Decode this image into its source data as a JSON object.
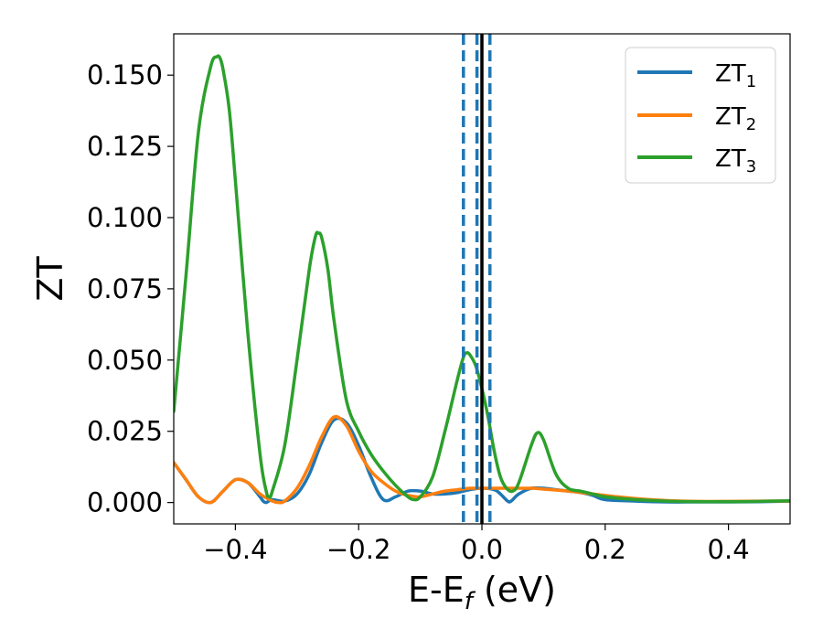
{
  "chart_data": {
    "type": "line",
    "xlabel": "E-E",
    "xlabel_sub": "f",
    "xlabel_unit": " (eV)",
    "ylabel": "ZT",
    "xlim": [
      -0.5,
      0.5
    ],
    "ylim": [
      -0.0075,
      0.1645
    ],
    "xticks": [
      -0.4,
      -0.2,
      0.0,
      0.2,
      0.4
    ],
    "xtick_labels": [
      "−0.4",
      "−0.2",
      "0.0",
      "0.2",
      "0.4"
    ],
    "yticks": [
      0.0,
      0.025,
      0.05,
      0.075,
      0.1,
      0.125,
      0.15
    ],
    "ytick_labels": [
      "0.000",
      "0.025",
      "0.050",
      "0.075",
      "0.100",
      "0.125",
      "0.150"
    ],
    "grid": false,
    "legend_position": "top-right",
    "vlines": [
      {
        "x": -0.03,
        "style": "dashed",
        "color": "#1f77b4"
      },
      {
        "x": -0.008,
        "style": "dashed",
        "color": "#1f77b4"
      },
      {
        "x": 0.013,
        "style": "dashed",
        "color": "#1f77b4"
      },
      {
        "x": 0.0,
        "style": "solid",
        "color": "#000000"
      }
    ],
    "series": [
      {
        "name": "ZT",
        "sub": "1",
        "color": "#1f77b4",
        "x": [
          -0.5,
          -0.48,
          -0.46,
          -0.44,
          -0.42,
          -0.4,
          -0.38,
          -0.36,
          -0.355,
          -0.35,
          -0.34,
          -0.32,
          -0.3,
          -0.28,
          -0.26,
          -0.24,
          -0.22,
          -0.2,
          -0.18,
          -0.16,
          -0.14,
          -0.12,
          -0.1,
          -0.08,
          -0.06,
          -0.04,
          -0.02,
          0.0,
          0.02,
          0.03,
          0.04,
          0.045,
          0.05,
          0.06,
          0.08,
          0.1,
          0.12,
          0.14,
          0.16,
          0.18,
          0.2,
          0.25,
          0.3,
          0.35,
          0.4,
          0.45,
          0.5
        ],
        "y": [
          0.014,
          0.008,
          0.002,
          0.0,
          0.004,
          0.008,
          0.007,
          0.002,
          0.0005,
          0.0,
          0.001,
          0.0005,
          0.003,
          0.01,
          0.021,
          0.029,
          0.028,
          0.02,
          0.009,
          0.001,
          0.002,
          0.004,
          0.004,
          0.003,
          0.003,
          0.0035,
          0.0045,
          0.005,
          0.0045,
          0.003,
          0.0008,
          0.0002,
          0.001,
          0.003,
          0.005,
          0.005,
          0.0045,
          0.004,
          0.0035,
          0.0025,
          0.001,
          0.0005,
          0.0002,
          0.0002,
          0.0002,
          0.0003,
          0.0005
        ]
      },
      {
        "name": "ZT",
        "sub": "2",
        "color": "#ff7f0e",
        "x": [
          -0.5,
          -0.48,
          -0.46,
          -0.44,
          -0.42,
          -0.4,
          -0.38,
          -0.36,
          -0.34,
          -0.33,
          -0.32,
          -0.3,
          -0.28,
          -0.26,
          -0.24,
          -0.22,
          -0.2,
          -0.18,
          -0.16,
          -0.14,
          -0.12,
          -0.1,
          -0.08,
          -0.06,
          -0.04,
          -0.02,
          0.0,
          0.02,
          0.05,
          0.08,
          0.1,
          0.14,
          0.18,
          0.22,
          0.26,
          0.3,
          0.35,
          0.4,
          0.45,
          0.5
        ],
        "y": [
          0.014,
          0.008,
          0.002,
          0.0,
          0.004,
          0.008,
          0.007,
          0.003,
          0.0005,
          0.0,
          0.0005,
          0.005,
          0.013,
          0.023,
          0.03,
          0.027,
          0.018,
          0.011,
          0.007,
          0.004,
          0.0025,
          0.002,
          0.003,
          0.004,
          0.0045,
          0.005,
          0.005,
          0.005,
          0.005,
          0.005,
          0.0047,
          0.004,
          0.003,
          0.002,
          0.0012,
          0.0007,
          0.0004,
          0.0004,
          0.0005,
          0.0005
        ]
      },
      {
        "name": "ZT",
        "sub": "3",
        "color": "#2ca02c",
        "x": [
          -0.5,
          -0.48,
          -0.46,
          -0.44,
          -0.43,
          -0.425,
          -0.42,
          -0.41,
          -0.4,
          -0.38,
          -0.36,
          -0.35,
          -0.345,
          -0.34,
          -0.32,
          -0.3,
          -0.28,
          -0.27,
          -0.265,
          -0.26,
          -0.25,
          -0.24,
          -0.22,
          -0.2,
          -0.18,
          -0.16,
          -0.14,
          -0.12,
          -0.11,
          -0.1,
          -0.08,
          -0.06,
          -0.04,
          -0.03,
          -0.025,
          -0.02,
          -0.01,
          0.0,
          0.01,
          0.02,
          0.03,
          0.04,
          0.05,
          0.06,
          0.08,
          0.09,
          0.1,
          0.12,
          0.14,
          0.16,
          0.18,
          0.2,
          0.25,
          0.3,
          0.35,
          0.4,
          0.45,
          0.5
        ],
        "y": [
          0.032,
          0.08,
          0.13,
          0.153,
          0.1565,
          0.156,
          0.152,
          0.138,
          0.113,
          0.06,
          0.017,
          0.004,
          0.002,
          0.004,
          0.02,
          0.05,
          0.082,
          0.0935,
          0.0945,
          0.093,
          0.082,
          0.064,
          0.036,
          0.025,
          0.017,
          0.011,
          0.006,
          0.002,
          0.001,
          0.002,
          0.009,
          0.025,
          0.043,
          0.051,
          0.0525,
          0.052,
          0.048,
          0.04,
          0.03,
          0.018,
          0.009,
          0.005,
          0.004,
          0.007,
          0.02,
          0.0245,
          0.022,
          0.01,
          0.005,
          0.004,
          0.003,
          0.002,
          0.001,
          0.0005,
          0.0003,
          0.0003,
          0.0004,
          0.0006
        ]
      }
    ]
  }
}
